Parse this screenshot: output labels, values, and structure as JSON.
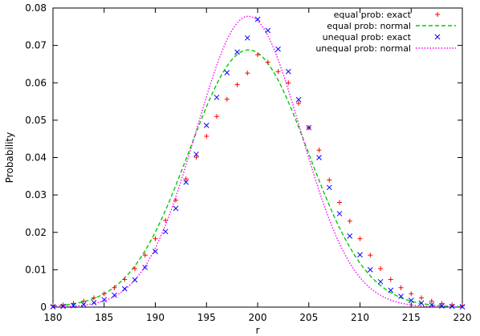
{
  "chart_data": {
    "type": "line",
    "title": "",
    "xlabel": "r",
    "ylabel": "Probability",
    "xlim": [
      180,
      220
    ],
    "ylim": [
      0,
      0.08
    ],
    "x_ticks": [
      180,
      185,
      190,
      195,
      200,
      205,
      210,
      215,
      220
    ],
    "y_ticks": [
      0,
      0.01,
      0.02,
      0.03,
      0.04,
      0.05,
      0.06,
      0.07,
      0.08
    ],
    "x_tick_labels": [
      "180",
      "185",
      "190",
      "195",
      "200",
      "205",
      "210",
      "215",
      "220"
    ],
    "y_tick_labels": [
      "0",
      "0.01",
      "0.02",
      "0.03",
      "0.04",
      "0.05",
      "0.06",
      "0.07",
      "0.08"
    ],
    "grid": false,
    "legend_position": "top-right",
    "series": [
      {
        "name": "equal prob: exact",
        "style": "points",
        "marker": "plus",
        "color": "#ff0000",
        "x": [
          180,
          181,
          182,
          183,
          184,
          185,
          186,
          187,
          188,
          189,
          190,
          191,
          192,
          193,
          194,
          195,
          196,
          197,
          198,
          199,
          200,
          201,
          202,
          203,
          204,
          205,
          206,
          207,
          208,
          209,
          210,
          211,
          212,
          213,
          214,
          215,
          216,
          217,
          218,
          219,
          220
        ],
        "y": [
          0.0004,
          0.0006,
          0.001,
          0.0016,
          0.0025,
          0.0036,
          0.0052,
          0.0074,
          0.0103,
          0.0139,
          0.0183,
          0.0232,
          0.0286,
          0.0343,
          0.0401,
          0.0457,
          0.051,
          0.0556,
          0.0595,
          0.0626,
          0.0675,
          0.0655,
          0.063,
          0.06,
          0.0545,
          0.048,
          0.042,
          0.034,
          0.028,
          0.023,
          0.0183,
          0.0139,
          0.0103,
          0.0074,
          0.0052,
          0.0036,
          0.0025,
          0.0016,
          0.001,
          0.0006,
          0.0004
        ]
      },
      {
        "name": "equal prob: normal",
        "style": "line",
        "dash": "dashed",
        "color": "#00cc00",
        "mean": 199.1,
        "sd": 5.8,
        "peak": 0.0688
      },
      {
        "name": "unequal prob: exact",
        "style": "points",
        "marker": "cross",
        "color": "#0000ff",
        "x": [
          180,
          181,
          182,
          183,
          184,
          185,
          186,
          187,
          188,
          189,
          190,
          191,
          192,
          193,
          194,
          195,
          196,
          197,
          198,
          199,
          200,
          201,
          202,
          203,
          204,
          205,
          206,
          207,
          208,
          209,
          210,
          211,
          212,
          213,
          214,
          215,
          216,
          217,
          218,
          219,
          220
        ],
        "y": [
          0.0001,
          0.0002,
          0.0004,
          0.0007,
          0.0012,
          0.002,
          0.0032,
          0.0049,
          0.0073,
          0.0106,
          0.0149,
          0.0202,
          0.0264,
          0.0334,
          0.0409,
          0.0486,
          0.0561,
          0.0627,
          0.0682,
          0.072,
          0.077,
          0.074,
          0.069,
          0.063,
          0.0555,
          0.048,
          0.04,
          0.032,
          0.025,
          0.019,
          0.014,
          0.01,
          0.0068,
          0.0045,
          0.0029,
          0.0018,
          0.0011,
          0.0006,
          0.0003,
          0.0002,
          0.0001
        ]
      },
      {
        "name": "unequal prob: normal",
        "style": "line",
        "dash": "dotted",
        "color": "#ff00ff",
        "mean": 199.1,
        "sd": 5.1,
        "peak": 0.0778
      }
    ]
  }
}
